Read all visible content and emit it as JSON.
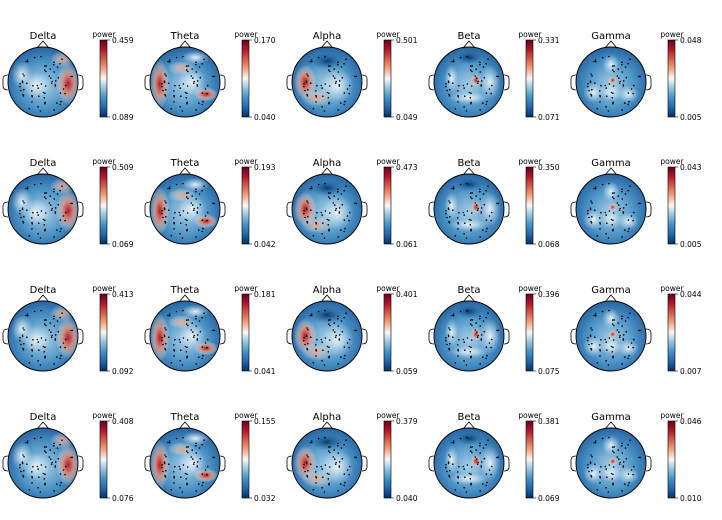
{
  "chart_data": {
    "type": "heatmap",
    "description_scale_label": "power",
    "rows": [
      [
        {
          "band": "Delta",
          "min": "0.089",
          "max": "0.459"
        },
        {
          "band": "Theta",
          "min": "0.040",
          "max": "0.170"
        },
        {
          "band": "Alpha",
          "min": "0.049",
          "max": "0.501"
        },
        {
          "band": "Beta",
          "min": "0.071",
          "max": "0.331"
        },
        {
          "band": "Gamma",
          "min": "0.005",
          "max": "0.048"
        }
      ],
      [
        {
          "band": "Delta",
          "min": "0.069",
          "max": "0.509"
        },
        {
          "band": "Theta",
          "min": "0.042",
          "max": "0.193"
        },
        {
          "band": "Alpha",
          "min": "0.061",
          "max": "0.473"
        },
        {
          "band": "Beta",
          "min": "0.068",
          "max": "0.350"
        },
        {
          "band": "Gamma",
          "min": "0.005",
          "max": "0.043"
        }
      ],
      [
        {
          "band": "Delta",
          "min": "0.092",
          "max": "0.413"
        },
        {
          "band": "Theta",
          "min": "0.041",
          "max": "0.181"
        },
        {
          "band": "Alpha",
          "min": "0.059",
          "max": "0.401"
        },
        {
          "band": "Beta",
          "min": "0.075",
          "max": "0.396"
        },
        {
          "band": "Gamma",
          "min": "0.007",
          "max": "0.044"
        }
      ],
      [
        {
          "band": "Delta",
          "min": "0.076",
          "max": "0.408"
        },
        {
          "band": "Theta",
          "min": "0.032",
          "max": "0.155"
        },
        {
          "band": "Alpha",
          "min": "0.040",
          "max": "0.379"
        },
        {
          "band": "Beta",
          "min": "0.069",
          "max": "0.381"
        },
        {
          "band": "Gamma",
          "min": "0.010",
          "max": "0.046"
        }
      ]
    ],
    "colormap": [
      "#053061",
      "#2166ac",
      "#4393c3",
      "#92c5de",
      "#f7f7f7",
      "#f4a582",
      "#d6604d",
      "#b2182b",
      "#67001f"
    ]
  }
}
